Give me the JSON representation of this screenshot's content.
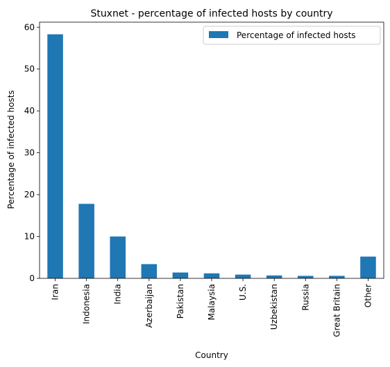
{
  "chart_data": {
    "type": "bar",
    "title": "Stuxnet - percentage of infected hosts by country",
    "xlabel": "Country",
    "ylabel": "Percentage of infected hosts",
    "categories": [
      "Iran",
      "Indonesia",
      "India",
      "Azerbaijan",
      "Pakistan",
      "Malaysia",
      "U.S.",
      "Uzbekistan",
      "Russia",
      "Great Britain",
      "Other"
    ],
    "series": [
      {
        "name": "Percentage of infected hosts",
        "values": [
          58.3,
          17.8,
          10.0,
          3.4,
          1.4,
          1.2,
          0.9,
          0.7,
          0.6,
          0.6,
          5.2
        ],
        "color": "#1f77b4"
      }
    ],
    "ylim": [
      0,
      61.2
    ],
    "yticks": [
      0,
      10,
      20,
      30,
      40,
      50,
      60
    ],
    "grid": false,
    "legend_position": "top-right"
  }
}
